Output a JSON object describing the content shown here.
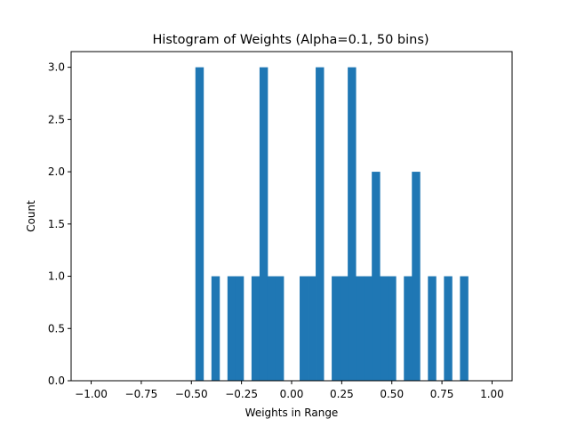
{
  "chart_data": {
    "type": "bar",
    "title": "Histogram of Weights (Alpha=0.1, 50 bins)",
    "xlabel": "Weights in Range",
    "ylabel": "Count",
    "xlim": [
      -1.1,
      1.1
    ],
    "ylim": [
      0,
      3.15
    ],
    "bin_range": [
      -1.0,
      1.0
    ],
    "bins": 50,
    "bar_color": "#1f77b4",
    "grid": false,
    "legend": "none",
    "xticks": [
      {
        "value": -1.0,
        "label": "−1.00"
      },
      {
        "value": -0.75,
        "label": "−0.75"
      },
      {
        "value": -0.5,
        "label": "−0.50"
      },
      {
        "value": -0.25,
        "label": "−0.25"
      },
      {
        "value": 0.0,
        "label": "0.00"
      },
      {
        "value": 0.25,
        "label": "0.25"
      },
      {
        "value": 0.5,
        "label": "0.50"
      },
      {
        "value": 0.75,
        "label": "0.75"
      },
      {
        "value": 1.0,
        "label": "1.00"
      }
    ],
    "yticks": [
      {
        "value": 0.0,
        "label": "0.0"
      },
      {
        "value": 0.5,
        "label": "0.5"
      },
      {
        "value": 1.0,
        "label": "1.0"
      },
      {
        "value": 1.5,
        "label": "1.5"
      },
      {
        "value": 2.0,
        "label": "2.0"
      },
      {
        "value": 2.5,
        "label": "2.5"
      },
      {
        "value": 3.0,
        "label": "3.0"
      }
    ],
    "counts": [
      0,
      0,
      0,
      0,
      0,
      0,
      0,
      0,
      0,
      0,
      0,
      0,
      0,
      3,
      0,
      1,
      0,
      1,
      1,
      0,
      1,
      3,
      1,
      1,
      0,
      0,
      1,
      1,
      3,
      0,
      1,
      1,
      3,
      1,
      1,
      2,
      1,
      1,
      0,
      1,
      2,
      0,
      1,
      0,
      1,
      0,
      1,
      0,
      0,
      0
    ]
  }
}
